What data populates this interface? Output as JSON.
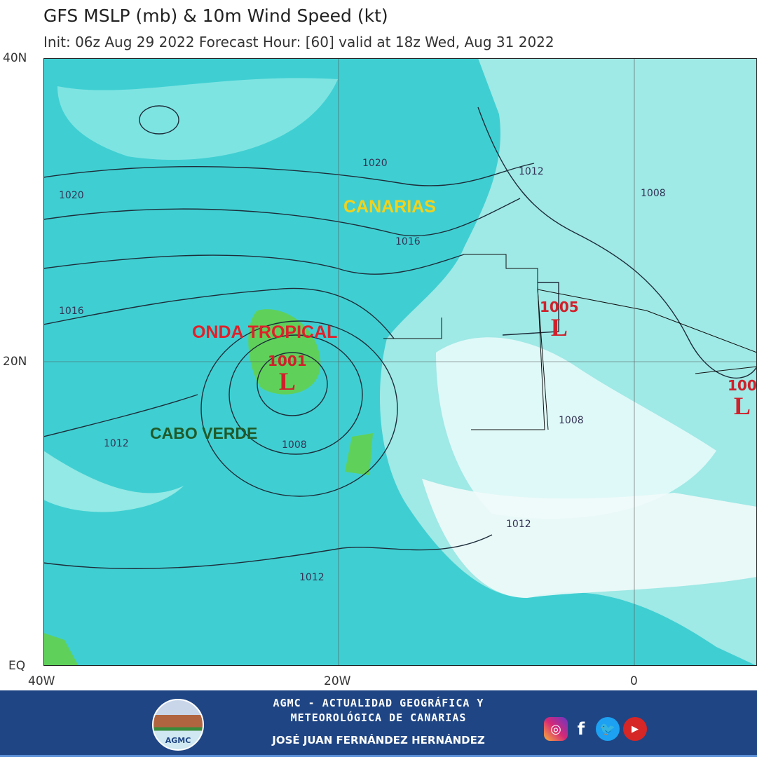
{
  "header": {
    "title": "GFS MSLP (mb) & 10m Wind Speed (kt)",
    "subtitle": "Init: 06z Aug 29 2022   Forecast Hour: [60]   valid at 18z Wed, Aug 31 2022"
  },
  "axes": {
    "lat_labels": [
      "40N",
      "20N",
      "EQ"
    ],
    "lon_labels": [
      "40W",
      "20W",
      "0"
    ]
  },
  "colors": {
    "ocean": "#3fcfd2",
    "land": "#bdf3ef",
    "strong_wind": "#5fd15a",
    "annotation_canarias": "#f2d21b",
    "annotation_onda": "#e0202a",
    "annotation_cabo": "#1f5a2a",
    "footer": "#1f4584"
  },
  "annotations": {
    "canarias": "CANARIAS",
    "onda": "ONDA TROPICAL",
    "cabo": "CABO VERDE"
  },
  "isobar_labels": [
    "1020",
    "1020",
    "1012",
    "1008",
    "1016",
    "1016",
    "1012",
    "1008",
    "1008",
    "1012",
    "1012"
  ],
  "lows": [
    {
      "pressure": "1001",
      "symbol": "L"
    },
    {
      "pressure": "1005",
      "symbol": "L"
    },
    {
      "pressure": "100",
      "symbol": "L"
    }
  ],
  "footer": {
    "line1": "AGMC - ACTUALIDAD GEOGRÁFICA Y",
    "line2": "METEOROLÓGICA DE CANARIAS",
    "author": "JOSÉ JUAN FERNÁNDEZ HERNÁNDEZ",
    "logo_text": "AGMC",
    "social": [
      "instagram-icon",
      "facebook-icon",
      "twitter-icon",
      "youtube-icon"
    ]
  }
}
